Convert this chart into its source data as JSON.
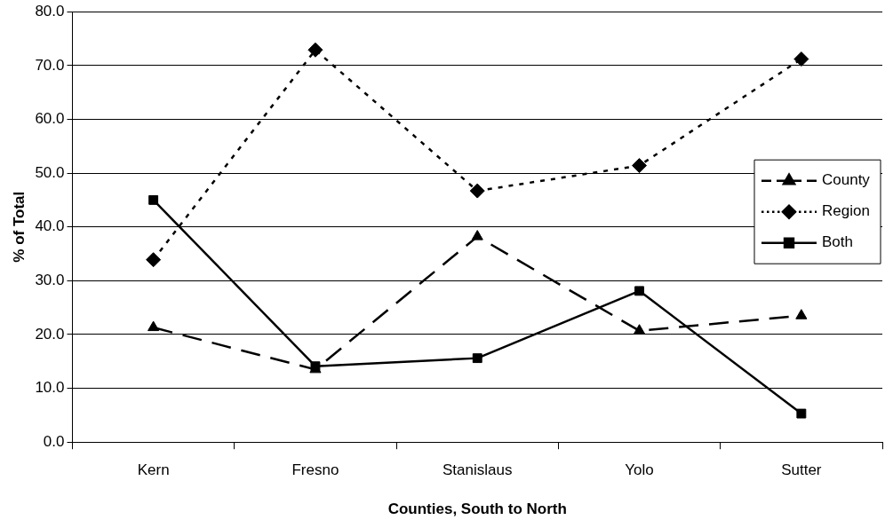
{
  "chart_data": {
    "type": "line",
    "xlabel": "Counties, South to North",
    "ylabel": "% of Total",
    "categories": [
      "Kern",
      "Fresno",
      "Stanislaus",
      "Yolo",
      "Sutter"
    ],
    "series": [
      {
        "name": "County",
        "color": "#000000",
        "marker": "triangle",
        "line_style": "dashed",
        "values": [
          21.3,
          13.5,
          38.2,
          20.7,
          23.5
        ]
      },
      {
        "name": "Region",
        "color": "#000000",
        "marker": "diamond",
        "line_style": "dotted",
        "values": [
          33.9,
          72.9,
          46.7,
          51.4,
          71.2
        ]
      },
      {
        "name": "Both",
        "color": "#000000",
        "marker": "square",
        "line_style": "solid",
        "values": [
          45.0,
          14.1,
          15.6,
          28.1,
          5.3
        ]
      }
    ],
    "ylim": [
      0,
      80
    ],
    "yticks": [
      {
        "value": 0,
        "label": "0.0"
      },
      {
        "value": 10,
        "label": "10.0"
      },
      {
        "value": 20,
        "label": "20.0"
      },
      {
        "value": 30,
        "label": "30.0"
      },
      {
        "value": 40,
        "label": "40.0"
      },
      {
        "value": 50,
        "label": "50.0"
      },
      {
        "value": 60,
        "label": "60.0"
      },
      {
        "value": 70,
        "label": "70.0"
      },
      {
        "value": 80,
        "label": "80.0"
      }
    ],
    "grid": "y",
    "legend": "right"
  }
}
